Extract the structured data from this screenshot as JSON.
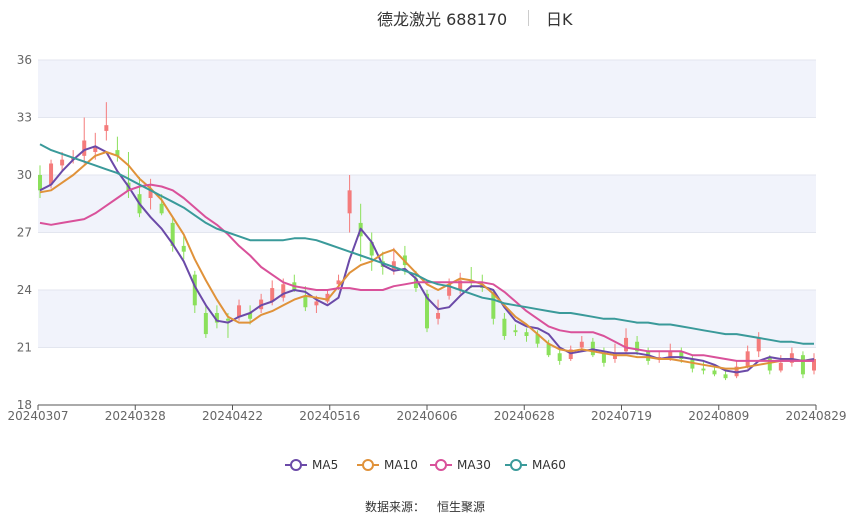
{
  "title": "德龙激光 688170",
  "subtitle": "日K",
  "source_label": "数据来源：",
  "source_name": "恒生聚源",
  "colors": {
    "up": "#f47b7b",
    "down": "#8be05b",
    "MA5": "#6b4aa8",
    "MA10": "#e0923a",
    "MA30": "#d9519a",
    "MA60": "#3a9a9a"
  },
  "chart_data": {
    "type": "candlestick",
    "ylim": [
      18,
      36
    ],
    "yticks": [
      "18",
      "21",
      "24",
      "27",
      "30",
      "33",
      "36"
    ],
    "xticks": [
      "20240307",
      "20240328",
      "20240422",
      "20240516",
      "20240606",
      "20240628",
      "20240719",
      "20240809",
      "20240829"
    ],
    "legend_position": "bottom",
    "grid": true,
    "series": [
      {
        "name": "MA5",
        "values": [
          29.2,
          29.5,
          30.2,
          30.8,
          31.3,
          31.5,
          31.2,
          30.2,
          29.4,
          28.5,
          27.8,
          27.2,
          26.4,
          25.5,
          24.2,
          23.2,
          22.4,
          22.3,
          22.6,
          22.8,
          23.2,
          23.4,
          23.8,
          24.0,
          23.9,
          23.5,
          23.2,
          23.6,
          25.6,
          27.2,
          26.5,
          25.3,
          25.0,
          25.1,
          24.6,
          23.6,
          23.0,
          23.1,
          23.7,
          24.2,
          24.2,
          24.0,
          23.1,
          22.4,
          22.1,
          22.0,
          21.7,
          21.0,
          20.7,
          20.8,
          20.9,
          20.8,
          20.7,
          20.7,
          20.7,
          20.6,
          20.4,
          20.5,
          20.5,
          20.4,
          20.3,
          20.1,
          19.8,
          19.7,
          19.8,
          20.3,
          20.5,
          20.4,
          20.4,
          20.3,
          20.4
        ]
      },
      {
        "name": "MA10",
        "values": [
          29.1,
          29.2,
          29.6,
          30.0,
          30.5,
          31.0,
          31.2,
          31.0,
          30.5,
          29.8,
          29.3,
          28.7,
          27.8,
          26.9,
          25.6,
          24.5,
          23.5,
          22.6,
          22.3,
          22.3,
          22.7,
          22.9,
          23.2,
          23.5,
          23.7,
          23.6,
          23.5,
          24.2,
          24.9,
          25.3,
          25.5,
          25.9,
          26.1,
          25.5,
          24.9,
          24.3,
          24.0,
          24.3,
          24.6,
          24.5,
          24.3,
          23.8,
          23.2,
          22.6,
          22.2,
          21.7,
          21.2,
          20.9,
          20.8,
          20.9,
          20.8,
          20.7,
          20.6,
          20.6,
          20.5,
          20.5,
          20.4,
          20.4,
          20.3,
          20.2,
          20.1,
          20.0,
          19.9,
          19.9,
          20.0,
          20.1,
          20.2,
          20.3,
          20.3,
          20.3,
          20.3
        ]
      },
      {
        "name": "MA30",
        "values": [
          27.5,
          27.4,
          27.5,
          27.6,
          27.7,
          28.0,
          28.4,
          28.8,
          29.2,
          29.4,
          29.5,
          29.4,
          29.2,
          28.8,
          28.3,
          27.8,
          27.4,
          26.9,
          26.3,
          25.8,
          25.2,
          24.8,
          24.4,
          24.2,
          24.1,
          24.0,
          24.0,
          24.1,
          24.1,
          24.0,
          24.0,
          24.0,
          24.2,
          24.3,
          24.4,
          24.4,
          24.4,
          24.4,
          24.4,
          24.4,
          24.4,
          24.3,
          23.9,
          23.4,
          22.9,
          22.5,
          22.1,
          21.9,
          21.8,
          21.8,
          21.8,
          21.6,
          21.3,
          21.0,
          20.9,
          20.8,
          20.8,
          20.8,
          20.8,
          20.6,
          20.6,
          20.5,
          20.4,
          20.3,
          20.3,
          20.3,
          20.3,
          20.3,
          20.3,
          20.3,
          20.3
        ]
      },
      {
        "name": "MA60",
        "values": [
          31.6,
          31.3,
          31.1,
          30.9,
          30.7,
          30.5,
          30.3,
          30.1,
          29.8,
          29.5,
          29.2,
          28.9,
          28.6,
          28.3,
          27.9,
          27.5,
          27.2,
          27.0,
          26.8,
          26.6,
          26.6,
          26.6,
          26.6,
          26.7,
          26.7,
          26.6,
          26.4,
          26.2,
          26.0,
          25.8,
          25.6,
          25.4,
          25.2,
          25.0,
          24.8,
          24.5,
          24.3,
          24.2,
          24.0,
          23.8,
          23.6,
          23.5,
          23.3,
          23.2,
          23.1,
          23.0,
          22.9,
          22.8,
          22.8,
          22.7,
          22.6,
          22.5,
          22.5,
          22.4,
          22.3,
          22.3,
          22.2,
          22.2,
          22.1,
          22.0,
          21.9,
          21.8,
          21.7,
          21.7,
          21.6,
          21.5,
          21.4,
          21.3,
          21.3,
          21.2,
          21.2
        ]
      }
    ],
    "candles": [
      [
        30.0,
        29.2,
        30.5,
        28.8
      ],
      [
        29.5,
        30.6,
        30.8,
        29.3
      ],
      [
        30.5,
        30.8,
        31.2,
        30.2
      ],
      [
        30.8,
        30.9,
        31.3,
        30.6
      ],
      [
        31.0,
        31.8,
        33.0,
        30.6
      ],
      [
        31.2,
        31.5,
        32.2,
        30.8
      ],
      [
        32.3,
        32.6,
        33.8,
        31.8
      ],
      [
        31.3,
        31.0,
        32.0,
        30.7
      ],
      [
        29.6,
        29.2,
        31.2,
        28.8
      ],
      [
        29.0,
        28.0,
        29.9,
        27.8
      ],
      [
        28.8,
        29.2,
        29.8,
        28.2
      ],
      [
        28.5,
        28.0,
        29.0,
        27.9
      ],
      [
        27.5,
        26.3,
        27.8,
        26.0
      ],
      [
        26.3,
        26.0,
        26.8,
        25.6
      ],
      [
        24.8,
        23.2,
        25.0,
        22.8
      ],
      [
        22.8,
        21.7,
        23.2,
        21.5
      ],
      [
        22.8,
        22.3,
        23.2,
        22.0
      ],
      [
        22.5,
        22.4,
        22.8,
        21.5
      ],
      [
        22.6,
        23.2,
        23.5,
        22.4
      ],
      [
        22.8,
        22.5,
        23.2,
        22.2
      ],
      [
        23.0,
        23.5,
        23.8,
        22.8
      ],
      [
        23.4,
        24.1,
        24.5,
        23.2
      ],
      [
        23.6,
        24.3,
        24.6,
        23.4
      ],
      [
        24.4,
        24.0,
        24.8,
        23.9
      ],
      [
        23.7,
        23.1,
        24.2,
        22.9
      ],
      [
        23.2,
        23.4,
        23.7,
        22.8
      ],
      [
        23.4,
        23.8,
        24.0,
        23.3
      ],
      [
        24.3,
        24.5,
        24.8,
        24.0
      ],
      [
        28.0,
        29.2,
        30.0,
        27.0
      ],
      [
        27.5,
        26.8,
        28.5,
        25.5
      ],
      [
        26.5,
        25.8,
        27.0,
        25.0
      ],
      [
        25.5,
        25.2,
        26.0,
        24.8
      ],
      [
        25.0,
        25.5,
        26.2,
        24.8
      ],
      [
        25.8,
        25.3,
        26.3,
        24.8
      ],
      [
        24.6,
        24.1,
        25.0,
        23.9
      ],
      [
        23.8,
        22.0,
        24.0,
        21.8
      ],
      [
        22.5,
        22.8,
        23.5,
        22.2
      ],
      [
        23.7,
        24.3,
        24.6,
        23.5
      ],
      [
        24.0,
        24.5,
        24.9,
        23.8
      ],
      [
        24.5,
        24.4,
        25.2,
        24.1
      ],
      [
        24.3,
        24.1,
        24.8,
        23.9
      ],
      [
        23.9,
        22.5,
        24.0,
        22.2
      ],
      [
        22.5,
        21.6,
        22.8,
        21.4
      ],
      [
        21.9,
        21.8,
        22.2,
        21.6
      ],
      [
        21.8,
        21.6,
        22.0,
        21.3
      ],
      [
        21.7,
        21.2,
        21.9,
        21.0
      ],
      [
        21.2,
        20.6,
        21.4,
        20.5
      ],
      [
        20.7,
        20.3,
        20.9,
        20.1
      ],
      [
        20.4,
        20.9,
        21.1,
        20.3
      ],
      [
        21.0,
        21.3,
        21.6,
        20.8
      ],
      [
        21.3,
        20.6,
        21.5,
        20.5
      ],
      [
        20.7,
        20.2,
        21.0,
        20.0
      ],
      [
        20.4,
        20.7,
        21.2,
        20.2
      ],
      [
        20.8,
        21.5,
        22.0,
        20.7
      ],
      [
        21.3,
        20.8,
        21.6,
        20.6
      ],
      [
        20.8,
        20.3,
        21.0,
        20.1
      ],
      [
        20.4,
        20.5,
        20.8,
        20.2
      ],
      [
        20.5,
        20.8,
        21.2,
        20.3
      ],
      [
        20.8,
        20.4,
        21.0,
        20.2
      ],
      [
        20.4,
        19.9,
        20.6,
        19.7
      ],
      [
        19.9,
        19.8,
        20.3,
        19.6
      ],
      [
        19.8,
        19.6,
        20.1,
        19.5
      ],
      [
        19.6,
        19.4,
        19.9,
        19.3
      ],
      [
        19.5,
        20.0,
        20.3,
        19.4
      ],
      [
        20.0,
        20.8,
        21.1,
        19.9
      ],
      [
        20.8,
        21.5,
        21.8,
        20.5
      ],
      [
        20.5,
        19.8,
        20.6,
        19.6
      ],
      [
        19.8,
        20.2,
        20.6,
        19.7
      ],
      [
        20.2,
        20.7,
        21.0,
        20.0
      ],
      [
        20.6,
        19.6,
        20.8,
        19.4
      ],
      [
        19.8,
        20.4,
        20.7,
        19.6
      ]
    ]
  }
}
